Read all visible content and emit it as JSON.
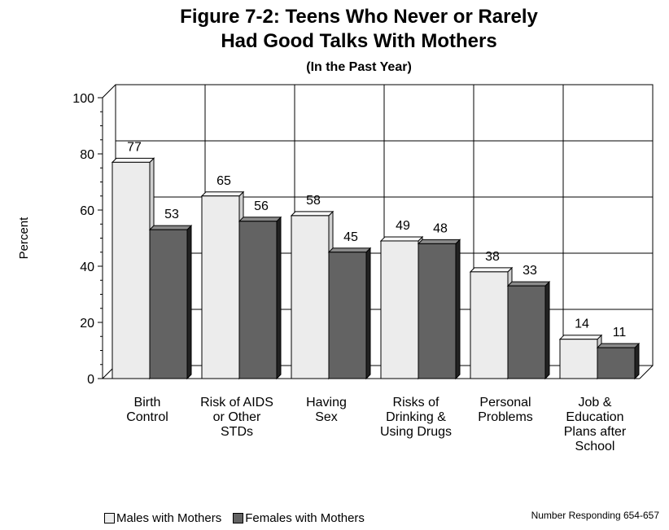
{
  "chart_data": {
    "type": "bar",
    "title_line1": "Figure 7-2: Teens Who Never or Rarely",
    "title_line2": "Had Good Talks With Mothers",
    "subtitle": "(In the Past Year)",
    "ylabel": "Percent",
    "ylim": [
      0,
      100
    ],
    "yticks": [
      0,
      20,
      40,
      60,
      80,
      100
    ],
    "grid": true,
    "legend_position": "bottom-left",
    "categories": [
      [
        "Birth",
        "Control"
      ],
      [
        "Risk of AIDS",
        "or Other",
        "STDs"
      ],
      [
        "Having",
        "Sex"
      ],
      [
        "Risks of",
        "Drinking &",
        "Using Drugs"
      ],
      [
        "Personal",
        "Problems"
      ],
      [
        "Job &",
        "Education",
        "Plans after",
        "School"
      ]
    ],
    "series": [
      {
        "name": "Males with Mothers",
        "color": "#ececec",
        "values": [
          77,
          65,
          58,
          49,
          38,
          14
        ]
      },
      {
        "name": "Females with Mothers",
        "color": "#636363",
        "values": [
          53,
          56,
          45,
          48,
          33,
          11
        ]
      }
    ],
    "note": "Number Responding  654-657"
  }
}
